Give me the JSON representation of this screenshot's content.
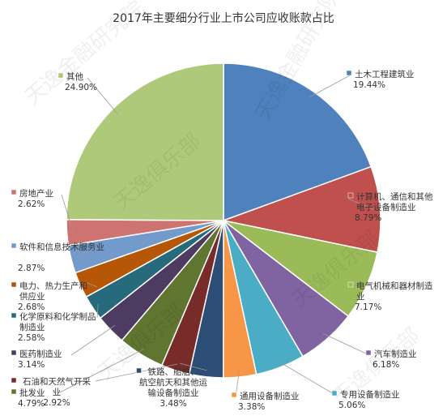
{
  "chart_data": {
    "type": "pie",
    "title": "2017年主要细分行业上市公司应收账款占比",
    "slices": [
      {
        "label": "土木工程建筑业",
        "value": 19.44,
        "display": "19.44%",
        "color": "#4f81bd"
      },
      {
        "label": "计算机、通信和其他电子设备制造业",
        "value": 8.79,
        "display": "8.79%",
        "color": "#c0504d"
      },
      {
        "label": "电气机械和器材制造业",
        "value": 7.17,
        "display": "7.17%",
        "color": "#9bbb59"
      },
      {
        "label": "汽车制造业",
        "value": 6.18,
        "display": "6.18%",
        "color": "#8064a2"
      },
      {
        "label": "专用设备制造业",
        "value": 5.06,
        "display": "5.06%",
        "color": "#4bacc6"
      },
      {
        "label": "通用设备制造业",
        "value": 3.38,
        "display": "3.38%",
        "color": "#f79646"
      },
      {
        "label": "铁路、船舶、航空航天和其他运输设备制造业",
        "value": 3.48,
        "display": "3.48%",
        "color": "#2c4d75"
      },
      {
        "label": "石油和天然气开采业",
        "value": 2.92,
        "display": "2.92%",
        "color": "#772c2a"
      },
      {
        "label": "批发业",
        "value": 4.79,
        "display": "4.79%",
        "color": "#5f7530"
      },
      {
        "label": "医药制造业",
        "value": 3.14,
        "display": "3.14%",
        "color": "#4d3b62"
      },
      {
        "label": "化学原料和化学制品制造业",
        "value": 2.58,
        "display": "2.58%",
        "color": "#276a7c"
      },
      {
        "label": "电力、热力生产和供应业",
        "value": 2.68,
        "display": "2.68%",
        "color": "#b65708"
      },
      {
        "label": "软件和信息技术服务业",
        "value": 2.87,
        "display": "2.87%",
        "color": "#729aca"
      },
      {
        "label": "房地产业",
        "value": 2.62,
        "display": "2.62%",
        "color": "#cd7371"
      },
      {
        "label": "其他",
        "value": 24.9,
        "display": "24.90%",
        "color": "#afc97a"
      }
    ]
  },
  "watermark": {
    "text": "天逸金融研究院",
    "text2": "天逸俱乐部"
  }
}
